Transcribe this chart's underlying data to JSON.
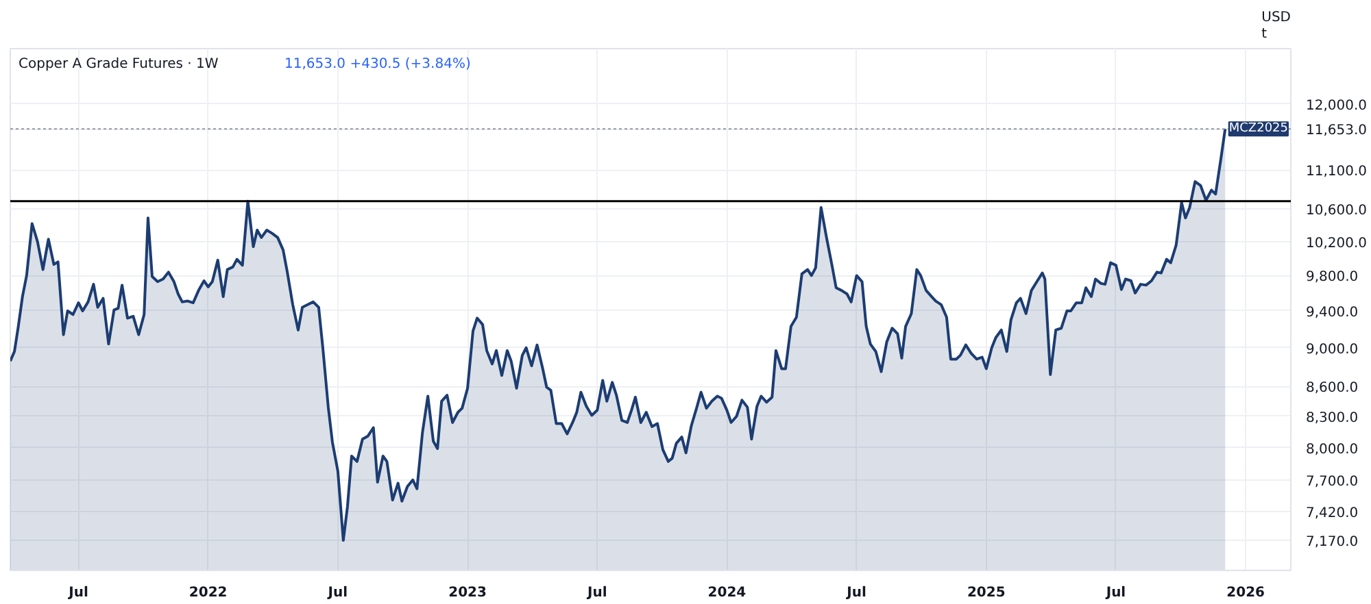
{
  "chart_data": {
    "type": "area",
    "title": "Copper A Grade Futures · 1W",
    "subtitle": "11,653.0 +430.5 (+3.84%)",
    "ylabel": "USD\nt",
    "annotations": [
      "MCZ2025"
    ],
    "x": [
      2021.237,
      2021.253,
      2021.268,
      2021.284,
      2021.3,
      2021.321,
      2021.342,
      2021.363,
      2021.384,
      2021.405,
      2021.421,
      2021.442,
      2021.458,
      2021.479,
      2021.5,
      2021.516,
      2021.537,
      2021.558,
      2021.574,
      2021.595,
      2021.616,
      2021.637,
      2021.653,
      2021.668,
      2021.689,
      2021.711,
      2021.732,
      2021.753,
      2021.768,
      2021.784,
      2021.805,
      2021.826,
      2021.847,
      2021.868,
      2021.884,
      2021.9,
      2021.921,
      2021.942,
      2021.963,
      2021.984,
      2022.0,
      2022.016,
      2022.037,
      2022.058,
      2022.074,
      2022.095,
      2022.111,
      2022.132,
      2022.153,
      2022.174,
      2022.189,
      2022.205,
      2022.226,
      2022.247,
      2022.268,
      2022.289,
      2022.305,
      2022.326,
      2022.347,
      2022.363,
      2022.384,
      2022.405,
      2022.426,
      2022.442,
      2022.463,
      2022.479,
      2022.5,
      2022.521,
      2022.537,
      2022.553,
      2022.574,
      2022.595,
      2022.616,
      2022.637,
      2022.653,
      2022.674,
      2022.689,
      2022.711,
      2022.732,
      2022.747,
      2022.768,
      2022.789,
      2022.805,
      2022.826,
      2022.847,
      2022.868,
      2022.884,
      2022.9,
      2022.921,
      2022.942,
      2022.963,
      2022.979,
      2023.0,
      2023.021,
      2023.037,
      2023.058,
      2023.074,
      2023.095,
      2023.111,
      2023.132,
      2023.153,
      2023.168,
      2023.189,
      2023.211,
      2023.226,
      2023.247,
      2023.268,
      2023.289,
      2023.305,
      2023.321,
      2023.342,
      2023.363,
      2023.384,
      2023.405,
      2023.421,
      2023.437,
      2023.458,
      2023.479,
      2023.5,
      2023.521,
      2023.537,
      2023.558,
      2023.574,
      2023.595,
      2023.616,
      2023.632,
      2023.647,
      2023.668,
      2023.689,
      2023.711,
      2023.732,
      2023.753,
      2023.774,
      2023.789,
      2023.805,
      2023.826,
      2023.842,
      2023.863,
      2023.884,
      2023.9,
      2023.921,
      2023.942,
      2023.963,
      2023.979,
      2024.0,
      2024.016,
      2024.037,
      2024.058,
      2024.079,
      2024.095,
      2024.116,
      2024.132,
      2024.153,
      2024.174,
      2024.189,
      2024.211,
      2024.226,
      2024.247,
      2024.268,
      2024.289,
      2024.311,
      2024.326,
      2024.342,
      2024.363,
      2024.384,
      2024.405,
      2024.421,
      2024.442,
      2024.463,
      2024.479,
      2024.5,
      2024.521,
      2024.537,
      2024.553,
      2024.574,
      2024.595,
      2024.616,
      2024.637,
      2024.658,
      2024.674,
      2024.689,
      2024.711,
      2024.732,
      2024.747,
      2024.768,
      2024.789,
      2024.805,
      2024.826,
      2024.847,
      2024.863,
      2024.884,
      2024.9,
      2024.921,
      2024.942,
      2024.963,
      2024.984,
      2025.0,
      2025.021,
      2025.037,
      2025.058,
      2025.079,
      2025.095,
      2025.116,
      2025.132,
      2025.153,
      2025.174,
      2025.195,
      2025.216,
      2025.226,
      2025.247,
      2025.268,
      2025.289,
      2025.311,
      2025.326,
      2025.347,
      2025.368,
      2025.384,
      2025.405,
      2025.421,
      2025.442,
      2025.458,
      2025.479,
      2025.5,
      2025.521,
      2025.537,
      2025.558,
      2025.574,
      2025.595,
      2025.616,
      2025.637,
      2025.658,
      2025.674,
      2025.695,
      2025.711,
      2025.732,
      2025.753,
      2025.768,
      2025.784,
      2025.805,
      2025.826,
      2025.847,
      2025.868,
      2025.884,
      2025.905,
      2025.921
    ],
    "series": [
      {
        "color": "#1c3d72",
        "values": [
          8860,
          8960,
          9230,
          9560,
          9800,
          10420,
          10200,
          9870,
          10230,
          9930,
          9960,
          9140,
          9400,
          9360,
          9490,
          9400,
          9500,
          9700,
          9440,
          9540,
          9040,
          9410,
          9430,
          9690,
          9320,
          9340,
          9140,
          9360,
          10490,
          9790,
          9730,
          9760,
          9840,
          9730,
          9590,
          9500,
          9510,
          9490,
          9630,
          9740,
          9670,
          9730,
          9980,
          9560,
          9870,
          9900,
          9990,
          9920,
          10700,
          10140,
          10340,
          10250,
          10340,
          10300,
          10250,
          10100,
          9840,
          9470,
          9190,
          9440,
          9470,
          9500,
          9440,
          9000,
          8390,
          8050,
          7780,
          7170,
          7460,
          7920,
          7870,
          8080,
          8110,
          8190,
          7680,
          7920,
          7870,
          7520,
          7670,
          7510,
          7640,
          7700,
          7620,
          8140,
          8500,
          8060,
          7990,
          8450,
          8510,
          8240,
          8340,
          8380,
          8580,
          9180,
          9320,
          9250,
          8970,
          8830,
          8970,
          8710,
          8970,
          8860,
          8580,
          8920,
          9000,
          8810,
          9030,
          8790,
          8590,
          8560,
          8230,
          8230,
          8130,
          8240,
          8340,
          8540,
          8400,
          8310,
          8360,
          8660,
          8450,
          8640,
          8510,
          8260,
          8240,
          8360,
          8490,
          8240,
          8340,
          8200,
          8230,
          7980,
          7870,
          7900,
          8040,
          8100,
          7950,
          8210,
          8390,
          8540,
          8380,
          8450,
          8500,
          8480,
          8360,
          8240,
          8300,
          8460,
          8390,
          8080,
          8400,
          8500,
          8440,
          8490,
          8970,
          8780,
          8780,
          9230,
          9330,
          9820,
          9870,
          9800,
          9890,
          10620,
          10250,
          9920,
          9660,
          9630,
          9590,
          9500,
          9800,
          9730,
          9230,
          9040,
          8960,
          8750,
          9060,
          9210,
          9150,
          8890,
          9230,
          9370,
          9870,
          9800,
          9630,
          9560,
          9510,
          9470,
          9330,
          8880,
          8880,
          8920,
          9030,
          8940,
          8880,
          8900,
          8780,
          9000,
          9110,
          9190,
          8960,
          9300,
          9490,
          9540,
          9370,
          9630,
          9730,
          9830,
          9760,
          8720,
          9190,
          9210,
          9400,
          9400,
          9490,
          9490,
          9660,
          9560,
          9760,
          9710,
          9700,
          9950,
          9920,
          9640,
          9760,
          9740,
          9600,
          9700,
          9690,
          9740,
          9840,
          9830,
          9990,
          9950,
          10160,
          10680,
          10490,
          10620,
          10950,
          10900,
          10710,
          10840,
          10790,
          11260,
          11653
        ]
      }
    ],
    "xlim": [
      2021.237,
      2026.174
    ],
    "ylim": [
      6920,
      12810
    ],
    "xticks": [
      {
        "value": 2021.5,
        "label": "Jul"
      },
      2022,
      {
        "value": 2022.5,
        "label": "Jul"
      },
      2023,
      {
        "value": 2023.5,
        "label": "Jul"
      },
      2024,
      {
        "value": 2024.5,
        "label": "Jul"
      },
      2025,
      {
        "value": 2025.5,
        "label": "Jul"
      },
      2026
    ],
    "yticks": [
      {
        "value": 7170,
        "label": "7,170.0"
      },
      {
        "value": 7420,
        "label": "7,420.0"
      },
      {
        "value": 7700,
        "label": "7,700.0"
      },
      {
        "value": 8000,
        "label": "8,000.0"
      },
      {
        "value": 8300,
        "label": "8,300.0"
      },
      {
        "value": 8600,
        "label": "8,600.0"
      },
      {
        "value": 9000,
        "label": "9,000.0"
      },
      {
        "value": 9400,
        "label": "9,400.0"
      },
      {
        "value": 9800,
        "label": "9,800.0"
      },
      {
        "value": 10200,
        "label": "10,200.0"
      },
      {
        "value": 10600,
        "label": "10,600.0"
      },
      {
        "value": 11100,
        "label": "11,100.0"
      },
      {
        "value": 12000,
        "label": "12,000.0"
      }
    ],
    "log": true,
    "grid": true,
    "ref_lines": [
      {
        "axis": "y",
        "value": 10700,
        "color": "#000000",
        "line_style": "solid"
      },
      {
        "axis": "y",
        "value": 11653,
        "label": "11,653.0",
        "color": "#9598a1",
        "line_style": "dotted"
      }
    ]
  }
}
